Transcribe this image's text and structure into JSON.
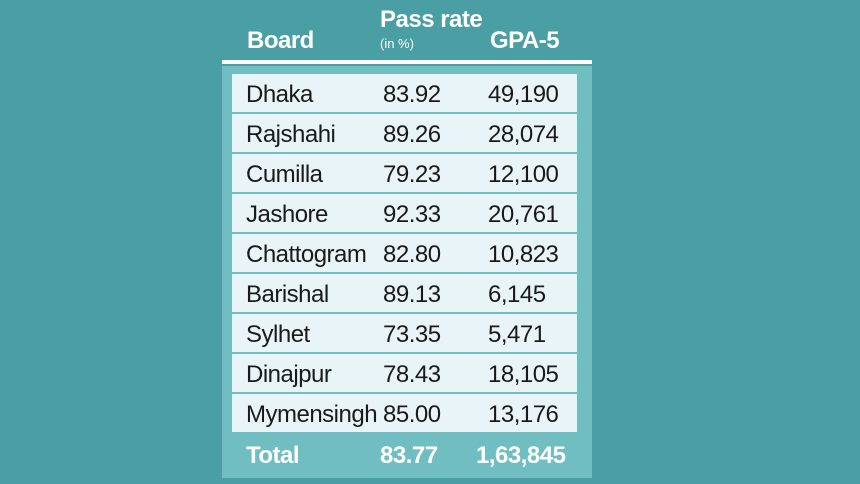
{
  "colors": {
    "background": "#4a9fa4",
    "panel": "#71bec2",
    "row": "#e9f4f8",
    "header_text": "#ffffff"
  },
  "chart_data": {
    "type": "table",
    "columns": [
      "Board",
      "Pass rate",
      "GPA-5"
    ],
    "pass_rate_unit": "(in %)",
    "rows": [
      {
        "board": "Dhaka",
        "pass_rate": "83.92",
        "gpa5": "49,190"
      },
      {
        "board": "Rajshahi",
        "pass_rate": "89.26",
        "gpa5": "28,074"
      },
      {
        "board": "Cumilla",
        "pass_rate": "79.23",
        "gpa5": "12,100"
      },
      {
        "board": "Jashore",
        "pass_rate": "92.33",
        "gpa5": "20,761"
      },
      {
        "board": "Chattogram",
        "pass_rate": "82.80",
        "gpa5": "10,823"
      },
      {
        "board": "Barishal",
        "pass_rate": "89.13",
        "gpa5": "6,145"
      },
      {
        "board": "Sylhet",
        "pass_rate": "73.35",
        "gpa5": "5,471"
      },
      {
        "board": "Dinajpur",
        "pass_rate": "78.43",
        "gpa5": "18,105"
      },
      {
        "board": "Mymensingh",
        "pass_rate": "85.00",
        "gpa5": "13,176"
      }
    ],
    "total": {
      "label": "Total",
      "pass_rate": "83.77",
      "gpa5": "1,63,845"
    }
  }
}
